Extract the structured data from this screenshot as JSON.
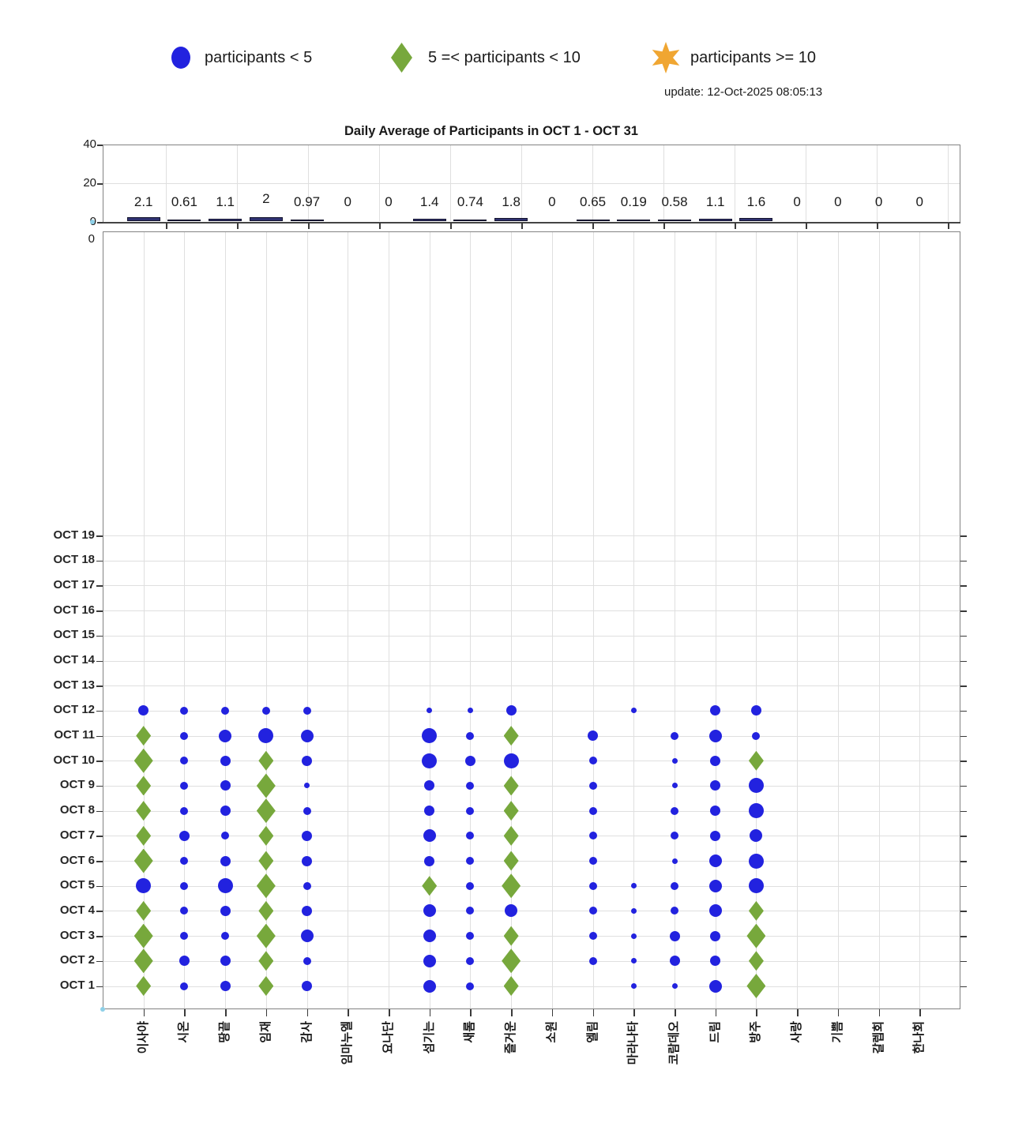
{
  "legend": {
    "items": [
      {
        "label": "participants < 5",
        "marker": "circle",
        "color": "#2222DF"
      },
      {
        "label": "5 =< participants < 10",
        "marker": "diamond",
        "color": "#77A83C"
      },
      {
        "label": "participants >= 10",
        "marker": "star6",
        "color": "#F0A632"
      }
    ]
  },
  "update_text": "update: 12-Oct-2025 08:05:13",
  "colors": {
    "blue_marker": "#2222DF",
    "green_marker": "#77A83C",
    "orange_marker": "#F0A632",
    "bar_fill": "#2F3171",
    "bar_edge": "#15152E",
    "grid": "#DFDFDF",
    "axis_box": "#828282",
    "tick": "#3A3A3A",
    "cyan_dot": "#8ED0E8"
  },
  "chart_data": [
    {
      "type": "bar",
      "title": "Daily Average of Participants in OCT 1 - OCT 31",
      "categories": [
        "이사야",
        "시온",
        "땅끝",
        "임재",
        "감사",
        "임마누엘",
        "요나단",
        "섬기는",
        "새롬",
        "즐거운",
        "소원",
        "엘림",
        "마라나타",
        "코람데오",
        "드림",
        "방주",
        "사랑",
        "기쁨",
        "갈렙회",
        "한나회"
      ],
      "values": [
        2.1,
        0.61,
        1.1,
        2,
        0.97,
        0,
        0,
        1.4,
        0.74,
        1.8,
        0,
        0.65,
        0.19,
        0.58,
        1.1,
        1.6,
        0,
        0,
        0,
        0
      ],
      "value_labels": [
        "2.1",
        "0.61",
        "1.1",
        "2",
        "0.97",
        "0",
        "0",
        "1.4",
        "0.74",
        "1.8",
        "0",
        "0.65",
        "0.19",
        "0.58",
        "1.1",
        "1.6",
        "0",
        "0",
        "0",
        "0"
      ],
      "ylim": [
        0,
        40
      ],
      "yticks": [
        "0",
        "20",
        "40"
      ],
      "grid": true,
      "legend_position": "top"
    },
    {
      "type": "scatter",
      "subtype": "bubble-grid",
      "x_categories": [
        "이사야",
        "시온",
        "땅끝",
        "임재",
        "감사",
        "임마누엘",
        "요나단",
        "섬기는",
        "새롬",
        "즐거운",
        "소원",
        "엘림",
        "마라나타",
        "코람데오",
        "드림",
        "방주",
        "사랑",
        "기쁨",
        "갈렙회",
        "한나회"
      ],
      "y_tick_labels": [
        "OCT 1",
        "OCT 2",
        "OCT 3",
        "OCT 4",
        "OCT 5",
        "OCT 6",
        "OCT 7",
        "OCT 8",
        "OCT 9",
        "OCT 10",
        "OCT 11",
        "OCT 12",
        "OCT 13",
        "OCT 14",
        "OCT 15",
        "OCT 16",
        "OCT 17",
        "OCT 18",
        "OCT 19"
      ],
      "y_range_days": [
        1,
        31
      ],
      "stray_zero_label": "0",
      "marker_size_key": {
        "c1": "blue circle, smallest (~1 participant)",
        "c2": "blue circle, small",
        "c3": "blue circle, medium",
        "c4": "blue circle, large",
        "c5": "blue circle, largest (<5)",
        "d2": "green diamond, 5=<p<10",
        "d3": "green diamond, larger, 5=<p<10"
      },
      "markers_by_column": {
        "이사야": [
          "d2",
          "d3",
          "d3",
          "d2",
          "c5",
          "d3",
          "d2",
          "d2",
          "d2",
          "d3",
          "d2",
          "c3"
        ],
        "시온": [
          "c2",
          "c3",
          "c2",
          "c2",
          "c2",
          "c2",
          "c3",
          "c2",
          "c2",
          "c2",
          "c2",
          "c2"
        ],
        "땅끝": [
          "c3",
          "c3",
          "c2",
          "c3",
          "c5",
          "c3",
          "c2",
          "c3",
          "c3",
          "c3",
          "c4",
          "c2"
        ],
        "임재": [
          "d2",
          "d2",
          "d3",
          "d2",
          "d3",
          "d2",
          "d2",
          "d3",
          "d3",
          "d2",
          "c5",
          "c2"
        ],
        "감사": [
          "c3",
          "c2",
          "c4",
          "c3",
          "c2",
          "c3",
          "c3",
          "c2",
          "c1",
          "c3",
          "c4",
          "c2"
        ],
        "섬기는": [
          "c4",
          "c4",
          "c4",
          "c4",
          "d2",
          "c3",
          "c4",
          "c3",
          "c3",
          "c5",
          "c5",
          "c1"
        ],
        "새롬": [
          "c2",
          "c2",
          "c2",
          "c2",
          "c2",
          "c2",
          "c2",
          "c2",
          "c2",
          "c3",
          "c2",
          "c1"
        ],
        "즐거운": [
          "d2",
          "d3",
          "d2",
          "c4",
          "d3",
          "d2",
          "d2",
          "d2",
          "d2",
          "c5",
          "d2",
          "c3"
        ],
        "엘림": [
          null,
          "c2",
          "c2",
          "c2",
          "c2",
          "c2",
          "c2",
          "c2",
          "c2",
          "c2",
          "c3",
          null
        ],
        "마라나타": [
          "c1",
          "c1",
          "c1",
          "c1",
          "c1",
          null,
          null,
          null,
          null,
          null,
          null,
          "c1"
        ],
        "코람데오": [
          "c1",
          "c3",
          "c3",
          "c2",
          "c2",
          "c1",
          "c2",
          "c2",
          "c1",
          "c1",
          "c2",
          null
        ],
        "드림": [
          "c4",
          "c3",
          "c3",
          "c4",
          "c4",
          "c4",
          "c3",
          "c3",
          "c3",
          "c3",
          "c4",
          "c3"
        ],
        "방주": [
          "d3",
          "d2",
          "d3",
          "d2",
          "c5",
          "c5",
          "c4",
          "c5",
          "c5",
          "d2",
          "c2",
          "c3"
        ]
      }
    }
  ]
}
